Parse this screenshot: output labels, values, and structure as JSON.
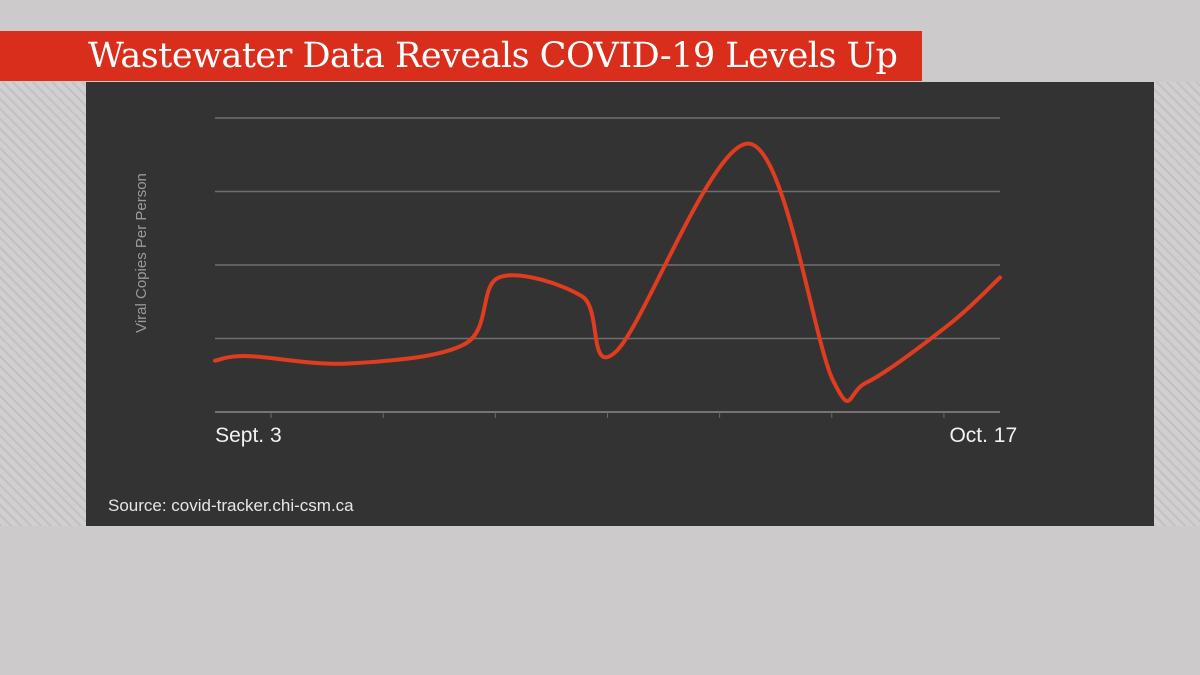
{
  "header": {
    "title": "Wastewater Data Reveals COVID-19 Levels Up"
  },
  "footer": {
    "source": "Source: covid-tracker.chi-csm.ca"
  },
  "colors": {
    "accent": "#d92e1c",
    "panel": "#333333",
    "line": "#e03c1f",
    "grid": "#6f6f6f"
  },
  "chart_data": {
    "type": "line",
    "title": "Wastewater Data Reveals COVID-19 Levels Up",
    "ylabel": "Viral Copies Per Person",
    "xlabel": "",
    "x_tick_labels": [
      {
        "label": "Sept. 3",
        "day": 2
      },
      {
        "label": "Oct. 17",
        "day": 46
      }
    ],
    "x_range": [
      0,
      47
    ],
    "y_range": [
      0,
      4
    ],
    "y_gridlines": [
      1,
      2,
      3,
      4
    ],
    "grid": true,
    "legend": "none",
    "series": [
      {
        "color": "#e03c1f",
        "x": [
          0,
          2,
          8,
          15,
          17,
          22,
          24,
          32,
          37,
          39,
          44,
          47
        ],
        "y": [
          0.7,
          0.76,
          0.66,
          0.93,
          1.83,
          1.57,
          0.82,
          3.65,
          0.43,
          0.4,
          1.2,
          1.83
        ]
      }
    ]
  }
}
